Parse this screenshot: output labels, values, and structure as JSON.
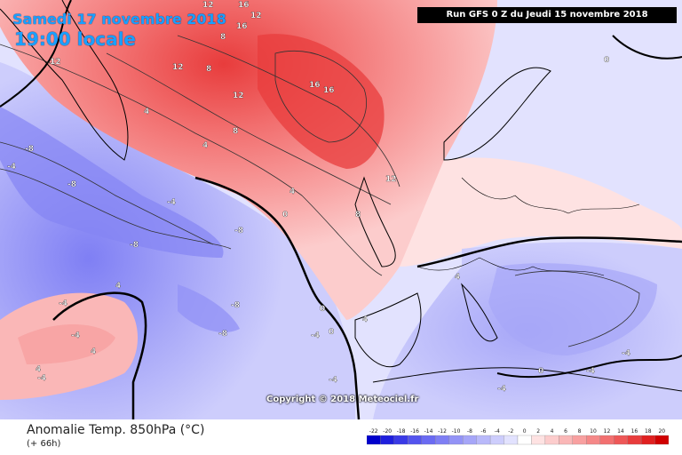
{
  "header": {
    "date": "Samedi 17 novembre 2018",
    "time": "19:00 locale",
    "run": "Run GFS 0 Z du Jeudi 15 novembre 2018"
  },
  "copyright": "Copyright © 2018 Meteociel.fr",
  "footer": {
    "title": "Anomalie Temp. 850hPa (°C)",
    "lead": "(+ 66h)"
  },
  "legend": {
    "values": [
      "-22",
      "-20",
      "-18",
      "-16",
      "-14",
      "-12",
      "-10",
      "-8",
      "-6",
      "-4",
      "-2",
      "0",
      "2",
      "4",
      "6",
      "8",
      "10",
      "12",
      "14",
      "16",
      "18",
      "20"
    ],
    "colors": [
      "#0000cc",
      "#1f1fdd",
      "#3a3ae6",
      "#5454ee",
      "#6b6bf2",
      "#7f7ff4",
      "#9393f6",
      "#a6a6f8",
      "#b9b9fa",
      "#cdcdfc",
      "#e2e2fe",
      "#ffffff",
      "#fee2e2",
      "#fccccc",
      "#fab7b7",
      "#f8a0a0",
      "#f58888",
      "#f27070",
      "#ee5757",
      "#e83c3c",
      "#e02020",
      "#d00000"
    ]
  },
  "map_labels": [
    {
      "text": "12"
    },
    {
      "text": "16"
    },
    {
      "text": "12"
    },
    {
      "text": "8"
    },
    {
      "text": "16"
    },
    {
      "text": "12"
    },
    {
      "text": "8"
    },
    {
      "text": "12"
    },
    {
      "text": "16"
    },
    {
      "text": "16"
    },
    {
      "text": "12"
    },
    {
      "text": "8"
    },
    {
      "text": "4"
    },
    {
      "text": "4"
    },
    {
      "text": "-8"
    },
    {
      "text": "-4"
    },
    {
      "text": "-4"
    },
    {
      "text": "-8"
    },
    {
      "text": "-8"
    },
    {
      "text": "-4"
    },
    {
      "text": "4"
    },
    {
      "text": "4"
    },
    {
      "text": "0"
    },
    {
      "text": "0"
    },
    {
      "text": "12"
    },
    {
      "text": "8"
    },
    {
      "text": "4"
    },
    {
      "text": "0"
    },
    {
      "text": "-4"
    },
    {
      "text": "-4"
    },
    {
      "text": "-4"
    },
    {
      "text": "-4"
    },
    {
      "text": "-8"
    },
    {
      "text": "-8"
    },
    {
      "text": "-8"
    },
    {
      "text": "4"
    },
    {
      "text": "4"
    },
    {
      "text": "0"
    },
    {
      "text": "-4"
    },
    {
      "text": "-4"
    },
    {
      "text": "-4"
    },
    {
      "text": "0"
    },
    {
      "text": "4"
    }
  ]
}
